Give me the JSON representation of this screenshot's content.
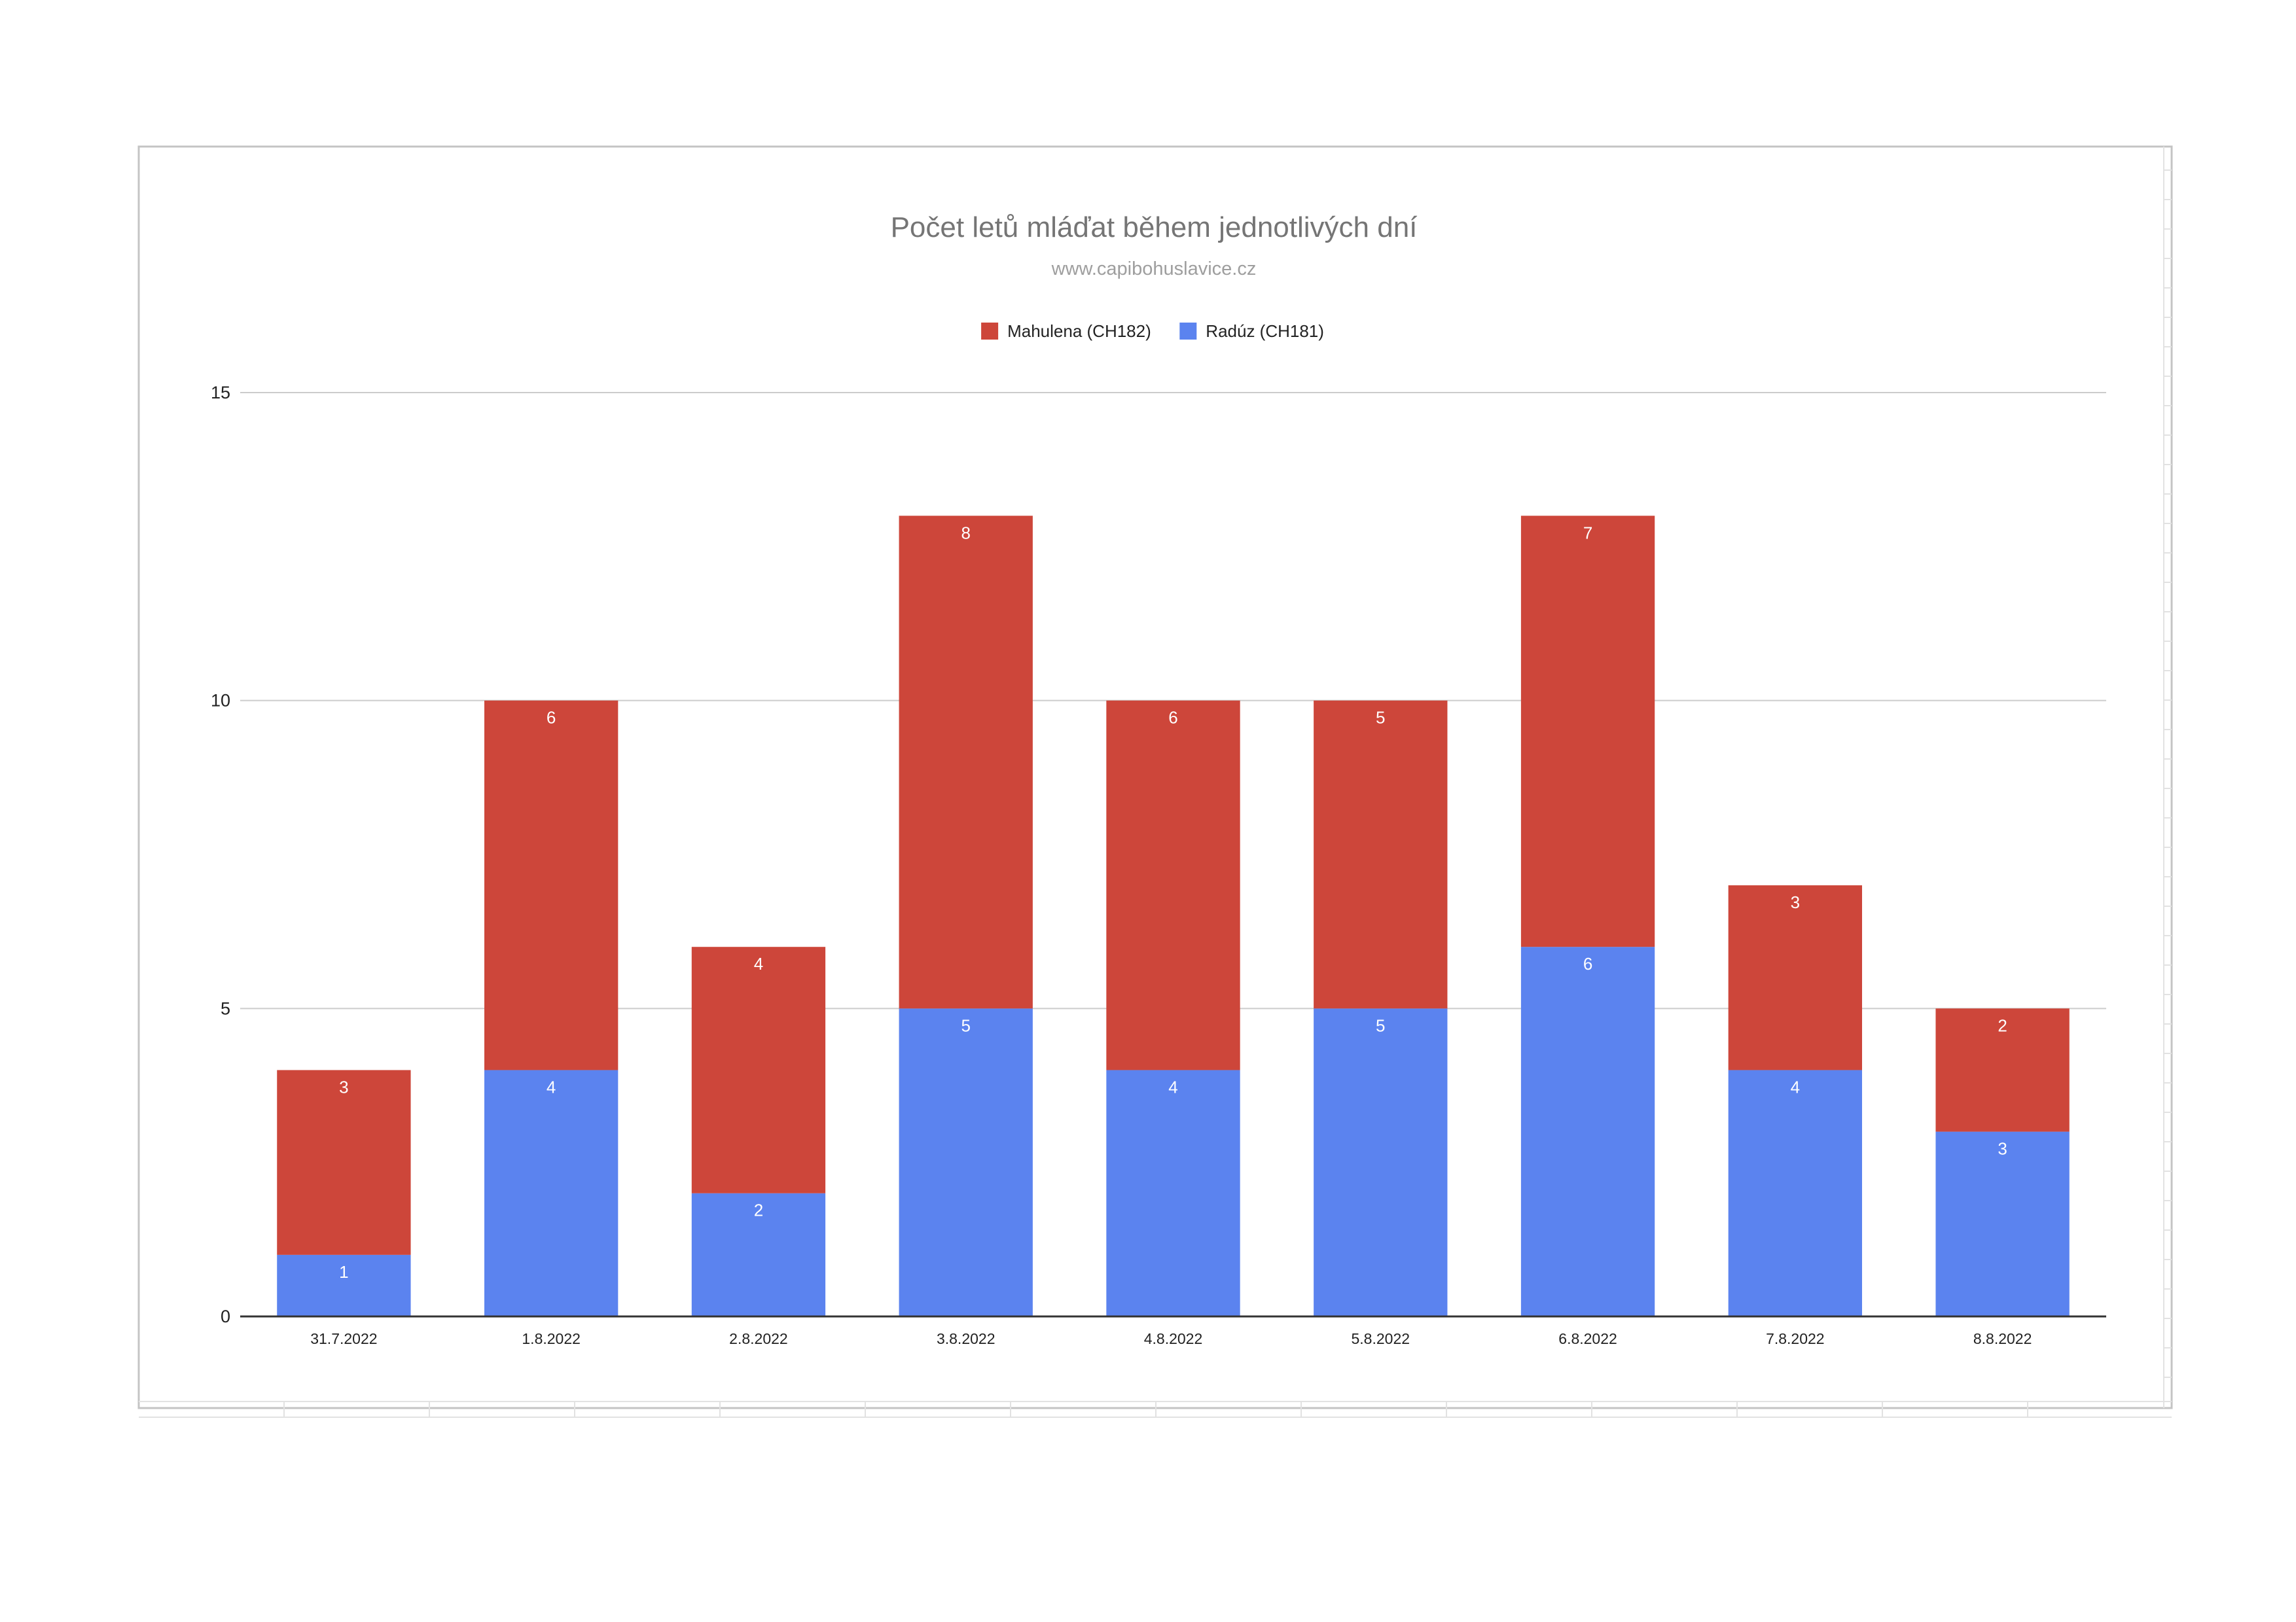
{
  "chart_data": {
    "type": "bar",
    "stacked": true,
    "title": "Počet letů mláďat během jednotlivých dní",
    "subtitle": "www.capibohuslavice.cz",
    "xlabel": "",
    "ylabel": "",
    "ylim": [
      0,
      15
    ],
    "yticks": [
      0,
      5,
      10,
      15
    ],
    "grid": true,
    "legend_position": "top",
    "categories": [
      "31.7.2022",
      "1.8.2022",
      "2.8.2022",
      "3.8.2022",
      "4.8.2022",
      "5.8.2022",
      "6.8.2022",
      "7.8.2022",
      "8.8.2022"
    ],
    "series": [
      {
        "name": "Radúz (CH181)",
        "color": "#5b83ef",
        "values": [
          1,
          4,
          2,
          5,
          4,
          5,
          6,
          4,
          3
        ]
      },
      {
        "name": "Mahulena (CH182)",
        "color": "#cd463a",
        "values": [
          3,
          6,
          4,
          8,
          6,
          5,
          7,
          3,
          2
        ]
      }
    ],
    "legend_order": [
      1,
      0
    ],
    "gridline_color": "#cccccc",
    "axis_color": "#333333",
    "label_color": "#ffffff"
  }
}
